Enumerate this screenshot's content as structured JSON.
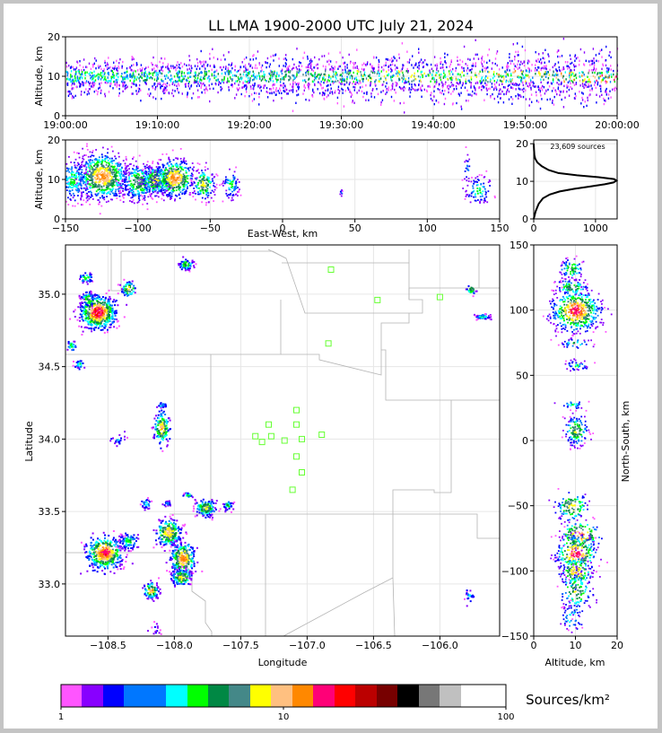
{
  "title": "LL LMA 1900-2000 UTC July 21, 2024",
  "colors": {
    "colorbar": [
      "#ff55ff",
      "#8800ff",
      "#0000ff",
      "#0077ff",
      "#00ffff",
      "#00ff00",
      "#008844",
      "#448888",
      "#ffff00",
      "#ffc080",
      "#ff8800",
      "#ff0077",
      "#ff0000",
      "#bb0000",
      "#770000",
      "#000000",
      "#777777",
      "#c0c0c0",
      "#ffffff"
    ],
    "station": "#66ff33",
    "border": "#b4b4b4"
  },
  "chart_data": [
    {
      "panel": "time-altitude",
      "type": "scatter",
      "ylabel": "Altitude, km",
      "ylim": [
        0,
        20
      ],
      "yticks": [
        "0",
        "10",
        "20"
      ],
      "xticks": [
        "19:00:00",
        "19:10:00",
        "19:20:00",
        "19:30:00",
        "19:40:00",
        "19:50:00",
        "20:00:00"
      ],
      "xlim": [
        "19:00:00",
        "20:00:00"
      ]
    },
    {
      "panel": "eastwest-altitude",
      "type": "scatter",
      "xlabel": "East-West, km",
      "ylabel": "Altitude, km",
      "xlim": [
        -150,
        150
      ],
      "ylim": [
        0,
        20
      ],
      "xticks": [
        "−150",
        "−100",
        "−50",
        "0",
        "50",
        "100",
        "150"
      ],
      "yticks": [
        "0",
        "10",
        "20"
      ]
    },
    {
      "panel": "altitude-histogram",
      "type": "line",
      "annotation": "23,609 sources",
      "xlim": [
        0,
        1350
      ],
      "ylim": [
        0,
        21
      ],
      "xticks": [
        "0",
        "1000"
      ],
      "yticks": [
        "0",
        "10",
        "20"
      ],
      "x": [
        0,
        30,
        80,
        150,
        260,
        420,
        650,
        900,
        1150,
        1290,
        1340,
        1300,
        1050,
        700,
        400,
        240,
        130,
        60,
        25,
        10,
        4,
        0
      ],
      "y": [
        0,
        2,
        4,
        5.5,
        6.5,
        7.3,
        8,
        8.6,
        9.2,
        9.7,
        10.2,
        10.6,
        11.1,
        11.6,
        12.2,
        13,
        14,
        15,
        16,
        17,
        18.5,
        20
      ]
    },
    {
      "panel": "plan-view",
      "type": "scatter",
      "xlabel": "Longitude",
      "ylabel": "Latitude",
      "xlim": [
        -108.82,
        -105.55
      ],
      "ylim": [
        32.64,
        35.34
      ],
      "xticks": [
        "−108.5",
        "−108.0",
        "−107.5",
        "−107.0",
        "−106.5",
        "−106.0"
      ],
      "yticks": [
        "33.0",
        "33.5",
        "34.0",
        "34.5",
        "35.0"
      ],
      "stations": [
        [
          -107.29,
          34.1
        ],
        [
          -107.08,
          34.2
        ],
        [
          -107.08,
          34.1
        ],
        [
          -107.39,
          34.02
        ],
        [
          -107.27,
          34.02
        ],
        [
          -107.34,
          33.98
        ],
        [
          -107.17,
          33.99
        ],
        [
          -107.04,
          34.0
        ],
        [
          -106.89,
          34.03
        ],
        [
          -107.08,
          33.88
        ],
        [
          -107.04,
          33.77
        ],
        [
          -107.11,
          33.65
        ],
        [
          -106.84,
          34.66
        ],
        [
          -106.82,
          35.17
        ],
        [
          -106.47,
          34.96
        ],
        [
          -106.0,
          34.98
        ]
      ]
    },
    {
      "panel": "altitude-northsouth",
      "type": "scatter",
      "xlabel": "Altitude, km",
      "ylabel": "North-South, km",
      "xlim": [
        0,
        20
      ],
      "ylim": [
        -150,
        150
      ],
      "xticks": [
        "0",
        "10",
        "20"
      ],
      "yticks": [
        "−150",
        "−100",
        "−50",
        "0",
        "50",
        "100",
        "150"
      ]
    },
    {
      "panel": "colorbar",
      "type": "heatmap",
      "label": "Sources/km²",
      "ticks": [
        "1",
        "10",
        "100"
      ],
      "scale": "log",
      "range": [
        1,
        100
      ]
    }
  ]
}
